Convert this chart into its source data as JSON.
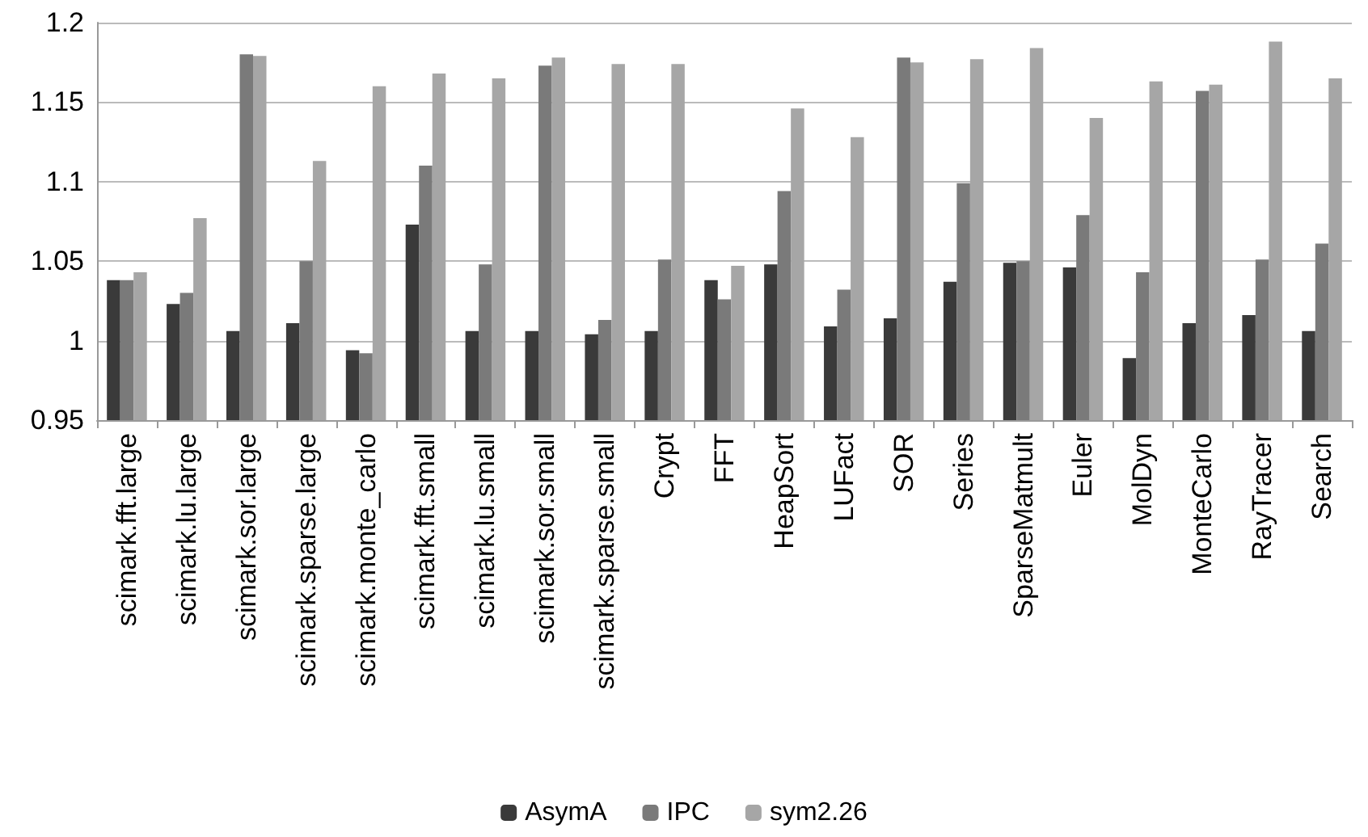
{
  "chart_data": {
    "type": "bar",
    "categories": [
      "scimark.fft.large",
      "scimark.lu.large",
      "scimark.sor.large",
      "scimark.sparse.large",
      "scimark.monte_carlo",
      "scimark.fft.small",
      "scimark.lu.small",
      "scimark.sor.small",
      "scimark.sparse.small",
      "Crypt",
      "FFT",
      "HeapSort",
      "LUFact",
      "SOR",
      "Series",
      "SparseMatmult",
      "Euler",
      "MolDyn",
      "MonteCarlo",
      "RayTracer",
      "Search"
    ],
    "series": [
      {
        "name": "AsymA",
        "color": "#3a3a3a",
        "values": [
          1.038,
          1.023,
          1.006,
          1.011,
          0.994,
          1.073,
          1.006,
          1.006,
          1.004,
          1.006,
          1.038,
          1.048,
          1.009,
          1.014,
          1.037,
          1.049,
          1.046,
          0.989,
          1.011,
          1.016,
          1.006
        ]
      },
      {
        "name": "IPC",
        "color": "#7a7a7a",
        "values": [
          1.038,
          1.03,
          1.18,
          1.05,
          0.992,
          1.11,
          1.048,
          1.173,
          1.013,
          1.051,
          1.026,
          1.094,
          1.032,
          1.178,
          1.099,
          1.05,
          1.079,
          1.043,
          1.157,
          1.051,
          1.061
        ]
      },
      {
        "name": "sym2.26",
        "color": "#a6a6a6",
        "values": [
          1.043,
          1.077,
          1.179,
          1.113,
          1.16,
          1.168,
          1.165,
          1.178,
          1.174,
          1.174,
          1.047,
          1.146,
          1.128,
          1.175,
          1.177,
          1.184,
          1.14,
          1.163,
          1.161,
          1.188,
          1.165
        ]
      }
    ],
    "ylim": [
      0.95,
      1.2
    ],
    "yticks": [
      0.95,
      1,
      1.05,
      1.1,
      1.15,
      1.2
    ],
    "grid": "y",
    "legend": "bottom"
  }
}
